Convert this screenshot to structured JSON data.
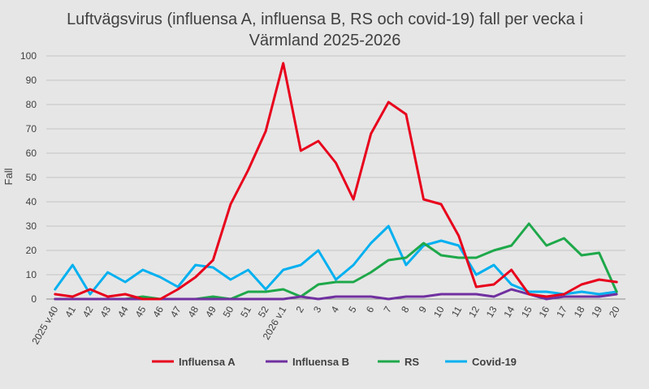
{
  "chart_data": {
    "type": "line",
    "title_line1": "Luftvägsvirus (influensa A, influensa B, RS och covid-19) fall per vecka i",
    "title_line2": "Värmland 2025-2026",
    "xlabel": "",
    "ylabel": "Fall",
    "ylim": [
      0,
      100
    ],
    "yticks": [
      0,
      10,
      20,
      30,
      40,
      50,
      60,
      70,
      80,
      90,
      100
    ],
    "grid": true,
    "legend_position": "bottom",
    "categories": [
      "2025 v.40",
      "41",
      "42",
      "43",
      "44",
      "45",
      "46",
      "47",
      "48",
      "49",
      "50",
      "51",
      "52",
      "2026 v.1",
      "2",
      "3",
      "4",
      "5",
      "6",
      "7",
      "8",
      "9",
      "10",
      "11",
      "12",
      "13",
      "14",
      "15",
      "16",
      "17",
      "18",
      "19",
      "20"
    ],
    "series": [
      {
        "name": "Influensa A",
        "color": "#e8001c",
        "values": [
          2,
          1,
          4,
          1,
          2,
          0,
          0,
          4,
          9,
          16,
          39,
          53,
          69,
          97,
          61,
          65,
          56,
          41,
          68,
          81,
          76,
          41,
          39,
          26,
          5,
          6,
          12,
          2,
          1,
          2,
          6,
          8,
          7
        ]
      },
      {
        "name": "Influensa B",
        "color": "#7030a0",
        "values": [
          0,
          0,
          0,
          0,
          0,
          0,
          0,
          0,
          0,
          0,
          0,
          0,
          0,
          0,
          1,
          0,
          1,
          1,
          1,
          0,
          1,
          1,
          2,
          2,
          2,
          1,
          4,
          2,
          0,
          1,
          1,
          1,
          2
        ]
      },
      {
        "name": "RS",
        "color": "#1ea84a",
        "values": [
          0,
          0,
          0,
          0,
          0,
          1,
          0,
          0,
          0,
          1,
          0,
          3,
          3,
          4,
          1,
          6,
          7,
          7,
          11,
          16,
          17,
          23,
          18,
          17,
          17,
          20,
          22,
          31,
          22,
          25,
          18,
          19,
          3
        ]
      },
      {
        "name": "Covid-19",
        "color": "#00b0f0",
        "values": [
          4,
          14,
          2,
          11,
          7,
          12,
          9,
          5,
          14,
          13,
          8,
          12,
          4,
          12,
          14,
          20,
          8,
          14,
          23,
          30,
          14,
          22,
          24,
          22,
          10,
          14,
          6,
          3,
          3,
          2,
          3,
          2,
          3
        ]
      }
    ]
  }
}
